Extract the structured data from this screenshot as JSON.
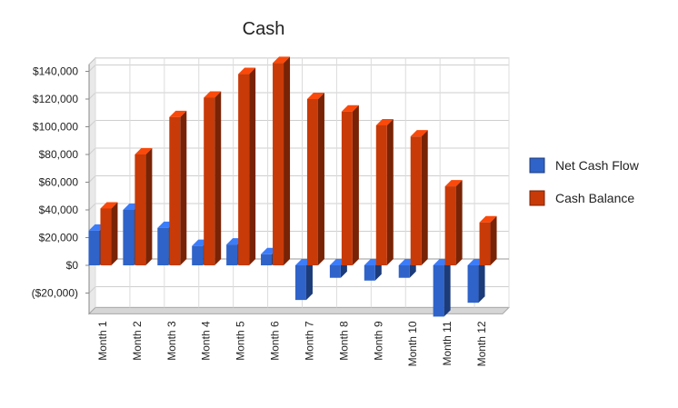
{
  "chart_data": {
    "type": "bar",
    "title": "Cash",
    "categories": [
      "Month 1",
      "Month 2",
      "Month 3",
      "Month 4",
      "Month 5",
      "Month 6",
      "Month 7",
      "Month 8",
      "Month 9",
      "Month 10",
      "Month 11",
      "Month 12"
    ],
    "series": [
      {
        "name": "Net Cash Flow",
        "color": "#2f63c9",
        "values": [
          25000,
          40000,
          27000,
          14000,
          15000,
          8000,
          -25000,
          -9000,
          -11000,
          -9000,
          -37000,
          -27000
        ]
      },
      {
        "name": "Cash Balance",
        "color": "#c83a08",
        "values": [
          41000,
          80000,
          107000,
          121000,
          138000,
          146000,
          120000,
          111000,
          101000,
          93000,
          57000,
          31000
        ]
      }
    ],
    "ylim": [
      -35000,
      145000
    ],
    "yticks": [
      {
        "value": 140000,
        "label": "$140,000"
      },
      {
        "value": 120000,
        "label": "$120,000"
      },
      {
        "value": 100000,
        "label": "$100,000"
      },
      {
        "value": 80000,
        "label": "$80,000"
      },
      {
        "value": 60000,
        "label": "$60,000"
      },
      {
        "value": 40000,
        "label": "$40,000"
      },
      {
        "value": 20000,
        "label": "$20,000"
      },
      {
        "value": 0,
        "label": "$0"
      },
      {
        "value": -20000,
        "label": "($20,000)"
      }
    ],
    "grid": true,
    "legend": "right",
    "style": "3d"
  }
}
